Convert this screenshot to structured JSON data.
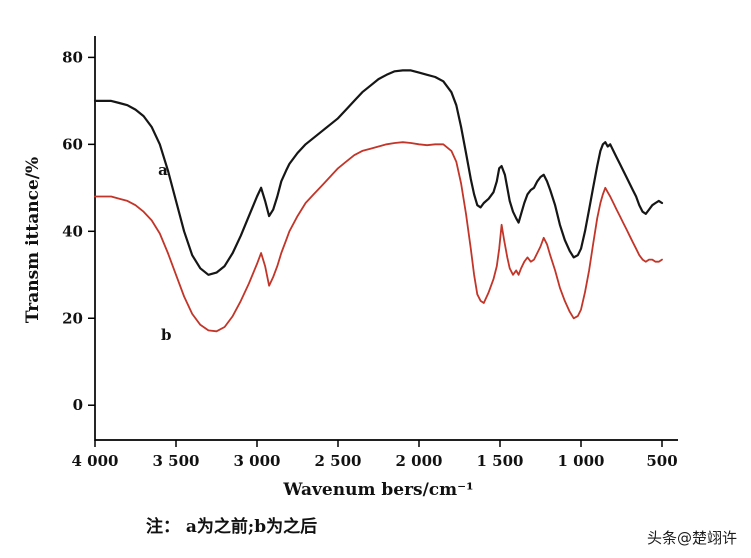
{
  "caption": "注： a为之前;b为之后",
  "watermark": "头条@楚翊许",
  "chart_data": {
    "type": "line",
    "title": "",
    "xlabel": "Wavenum bers/cm⁻¹",
    "ylabel": "Transm ittance/%",
    "xlim": [
      4000,
      500
    ],
    "ylim": [
      0,
      80
    ],
    "x_axis_reversed": true,
    "grid": false,
    "legend_position": "none",
    "x_ticks": [
      {
        "value": 4000,
        "label": "4 000"
      },
      {
        "value": 3500,
        "label": "3 500"
      },
      {
        "value": 3000,
        "label": "3 000"
      },
      {
        "value": 2500,
        "label": "2 500"
      },
      {
        "value": 2000,
        "label": "2 000"
      },
      {
        "value": 1500,
        "label": "1 500"
      },
      {
        "value": 1000,
        "label": "1 000"
      },
      {
        "value": 500,
        "label": "500"
      }
    ],
    "y_ticks": [
      {
        "value": 0,
        "label": "0"
      },
      {
        "value": 20,
        "label": "20"
      },
      {
        "value": 40,
        "label": "40"
      },
      {
        "value": 60,
        "label": "60"
      },
      {
        "value": 80,
        "label": "80"
      }
    ],
    "annotations": [
      {
        "text": "a",
        "x": 3580,
        "y": 53
      },
      {
        "text": "b",
        "x": 3560,
        "y": 15
      }
    ],
    "series": [
      {
        "name": "a",
        "color": "#161616",
        "width": 2.2,
        "points": [
          [
            4000,
            70
          ],
          [
            3950,
            70
          ],
          [
            3900,
            70
          ],
          [
            3850,
            69.5
          ],
          [
            3800,
            69
          ],
          [
            3750,
            68
          ],
          [
            3700,
            66.5
          ],
          [
            3650,
            64
          ],
          [
            3600,
            60
          ],
          [
            3550,
            54
          ],
          [
            3500,
            47
          ],
          [
            3450,
            40
          ],
          [
            3400,
            34.5
          ],
          [
            3350,
            31.5
          ],
          [
            3300,
            30
          ],
          [
            3250,
            30.5
          ],
          [
            3200,
            32
          ],
          [
            3150,
            35
          ],
          [
            3100,
            39
          ],
          [
            3050,
            43.5
          ],
          [
            3000,
            48
          ],
          [
            2975,
            50
          ],
          [
            2950,
            47
          ],
          [
            2925,
            43.5
          ],
          [
            2900,
            45
          ],
          [
            2875,
            48
          ],
          [
            2850,
            51.5
          ],
          [
            2820,
            54
          ],
          [
            2800,
            55.5
          ],
          [
            2750,
            58
          ],
          [
            2700,
            60
          ],
          [
            2650,
            61.5
          ],
          [
            2600,
            63
          ],
          [
            2550,
            64.5
          ],
          [
            2500,
            66
          ],
          [
            2450,
            68
          ],
          [
            2400,
            70
          ],
          [
            2350,
            72
          ],
          [
            2300,
            73.5
          ],
          [
            2250,
            75
          ],
          [
            2200,
            76
          ],
          [
            2150,
            76.8
          ],
          [
            2100,
            77
          ],
          [
            2050,
            77
          ],
          [
            2000,
            76.5
          ],
          [
            1950,
            76
          ],
          [
            1900,
            75.5
          ],
          [
            1850,
            74.5
          ],
          [
            1800,
            72
          ],
          [
            1770,
            69
          ],
          [
            1740,
            64
          ],
          [
            1710,
            58
          ],
          [
            1680,
            52
          ],
          [
            1660,
            48.5
          ],
          [
            1640,
            46
          ],
          [
            1620,
            45.5
          ],
          [
            1600,
            46.5
          ],
          [
            1570,
            47.5
          ],
          [
            1540,
            49
          ],
          [
            1520,
            51.5
          ],
          [
            1505,
            54.5
          ],
          [
            1490,
            55
          ],
          [
            1470,
            53
          ],
          [
            1455,
            50
          ],
          [
            1440,
            47
          ],
          [
            1420,
            44.5
          ],
          [
            1400,
            43
          ],
          [
            1385,
            42
          ],
          [
            1370,
            44
          ],
          [
            1350,
            46.5
          ],
          [
            1330,
            48.5
          ],
          [
            1310,
            49.5
          ],
          [
            1290,
            50
          ],
          [
            1270,
            51.5
          ],
          [
            1250,
            52.5
          ],
          [
            1230,
            53
          ],
          [
            1210,
            51.5
          ],
          [
            1190,
            49.5
          ],
          [
            1160,
            46
          ],
          [
            1130,
            41.5
          ],
          [
            1100,
            38
          ],
          [
            1070,
            35.5
          ],
          [
            1045,
            34
          ],
          [
            1020,
            34.5
          ],
          [
            1000,
            36
          ],
          [
            975,
            40
          ],
          [
            950,
            45
          ],
          [
            925,
            50
          ],
          [
            900,
            55
          ],
          [
            880,
            58.5
          ],
          [
            865,
            60
          ],
          [
            850,
            60.5
          ],
          [
            835,
            59.5
          ],
          [
            820,
            60
          ],
          [
            800,
            58.5
          ],
          [
            780,
            57
          ],
          [
            760,
            55.5
          ],
          [
            740,
            54
          ],
          [
            720,
            52.5
          ],
          [
            700,
            51
          ],
          [
            680,
            49.5
          ],
          [
            660,
            48
          ],
          [
            640,
            46
          ],
          [
            620,
            44.5
          ],
          [
            600,
            44
          ],
          [
            580,
            45
          ],
          [
            560,
            46
          ],
          [
            540,
            46.5
          ],
          [
            520,
            47
          ],
          [
            500,
            46.5
          ]
        ]
      },
      {
        "name": "b",
        "color": "#c23528",
        "width": 1.8,
        "points": [
          [
            4000,
            48
          ],
          [
            3950,
            48
          ],
          [
            3900,
            48
          ],
          [
            3850,
            47.5
          ],
          [
            3800,
            47
          ],
          [
            3750,
            46
          ],
          [
            3700,
            44.5
          ],
          [
            3650,
            42.5
          ],
          [
            3600,
            39.5
          ],
          [
            3550,
            35
          ],
          [
            3500,
            30
          ],
          [
            3450,
            25
          ],
          [
            3400,
            21
          ],
          [
            3350,
            18.5
          ],
          [
            3300,
            17.2
          ],
          [
            3250,
            17
          ],
          [
            3200,
            18
          ],
          [
            3150,
            20.5
          ],
          [
            3100,
            24
          ],
          [
            3050,
            28
          ],
          [
            3000,
            32.5
          ],
          [
            2975,
            35
          ],
          [
            2950,
            32
          ],
          [
            2925,
            27.5
          ],
          [
            2900,
            29.5
          ],
          [
            2875,
            32
          ],
          [
            2850,
            35
          ],
          [
            2820,
            38
          ],
          [
            2800,
            40
          ],
          [
            2750,
            43.5
          ],
          [
            2700,
            46.5
          ],
          [
            2650,
            48.5
          ],
          [
            2600,
            50.5
          ],
          [
            2550,
            52.5
          ],
          [
            2500,
            54.5
          ],
          [
            2450,
            56
          ],
          [
            2400,
            57.5
          ],
          [
            2350,
            58.5
          ],
          [
            2300,
            59
          ],
          [
            2250,
            59.5
          ],
          [
            2200,
            60
          ],
          [
            2150,
            60.3
          ],
          [
            2100,
            60.5
          ],
          [
            2050,
            60.3
          ],
          [
            2000,
            60
          ],
          [
            1950,
            59.8
          ],
          [
            1900,
            60
          ],
          [
            1850,
            60
          ],
          [
            1800,
            58.5
          ],
          [
            1770,
            56
          ],
          [
            1740,
            51
          ],
          [
            1710,
            44
          ],
          [
            1680,
            36
          ],
          [
            1660,
            30
          ],
          [
            1640,
            25.5
          ],
          [
            1620,
            24
          ],
          [
            1600,
            23.5
          ],
          [
            1570,
            26
          ],
          [
            1540,
            29
          ],
          [
            1520,
            32
          ],
          [
            1505,
            36
          ],
          [
            1490,
            41.5
          ],
          [
            1475,
            38
          ],
          [
            1455,
            34
          ],
          [
            1440,
            31.5
          ],
          [
            1420,
            30
          ],
          [
            1400,
            31
          ],
          [
            1385,
            30
          ],
          [
            1370,
            31.5
          ],
          [
            1350,
            33
          ],
          [
            1330,
            34
          ],
          [
            1310,
            33
          ],
          [
            1290,
            33.5
          ],
          [
            1270,
            35
          ],
          [
            1250,
            36.5
          ],
          [
            1230,
            38.5
          ],
          [
            1210,
            37
          ],
          [
            1190,
            34.5
          ],
          [
            1160,
            31
          ],
          [
            1130,
            27
          ],
          [
            1100,
            24
          ],
          [
            1070,
            21.5
          ],
          [
            1045,
            20
          ],
          [
            1020,
            20.5
          ],
          [
            1000,
            22
          ],
          [
            975,
            26
          ],
          [
            950,
            31
          ],
          [
            925,
            37
          ],
          [
            900,
            43
          ],
          [
            880,
            46.5
          ],
          [
            865,
            48.5
          ],
          [
            850,
            50
          ],
          [
            835,
            49
          ],
          [
            820,
            48
          ],
          [
            800,
            46.5
          ],
          [
            780,
            45
          ],
          [
            760,
            43.5
          ],
          [
            740,
            42
          ],
          [
            720,
            40.5
          ],
          [
            700,
            39
          ],
          [
            680,
            37.5
          ],
          [
            660,
            36
          ],
          [
            640,
            34.5
          ],
          [
            620,
            33.5
          ],
          [
            600,
            33
          ],
          [
            580,
            33.5
          ],
          [
            560,
            33.5
          ],
          [
            540,
            33
          ],
          [
            520,
            33
          ],
          [
            500,
            33.5
          ]
        ]
      }
    ]
  }
}
